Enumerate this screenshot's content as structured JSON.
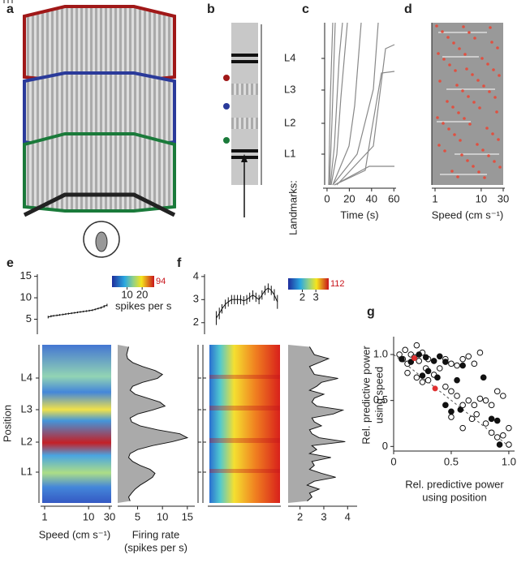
{
  "panel_labels": [
    "a",
    "b",
    "c",
    "d",
    "e",
    "f",
    "g"
  ],
  "b": {
    "landmarks": [
      "L4",
      "L3",
      "L2",
      "L1"
    ],
    "landmarks_title": "Landmarks:"
  },
  "c": {
    "xlabel": "Time (s)",
    "xlim": [
      -3.6,
      62
    ],
    "xticks": [
      0,
      20,
      40,
      60
    ]
  },
  "d": {
    "xlabel": "Speed (cm s⁻¹)",
    "xlim": [
      1,
      30
    ],
    "xticks": [
      1,
      10,
      30
    ],
    "log_x": true
  },
  "e": {
    "top": {
      "type": "line",
      "xlim": [
        1,
        30
      ],
      "log_x": true,
      "ylim": [
        1.5,
        15.5
      ],
      "yticks": [
        5,
        10,
        15
      ],
      "x": [
        1.2,
        1.4,
        1.6,
        1.9,
        2.2,
        2.6,
        3,
        3.5,
        4.1,
        4.8,
        5.6,
        6.5,
        7.6,
        8.9,
        10.4,
        12.1,
        14.1,
        16.5,
        19.3,
        22.5,
        26.3
      ],
      "values": [
        5.5,
        5.7,
        5.8,
        5.9,
        6.0,
        6.1,
        6.2,
        6.3,
        6.4,
        6.5,
        6.6,
        6.7,
        6.8,
        6.9,
        7.0,
        7.1,
        7.3,
        7.5,
        7.7,
        8.0,
        8.3
      ],
      "errors": [
        0.3,
        0.25,
        0.2,
        0.2,
        0.2,
        0.2,
        0.2,
        0.2,
        0.2,
        0.2,
        0.2,
        0.2,
        0.2,
        0.2,
        0.2,
        0.2,
        0.2,
        0.2,
        0.25,
        0.3,
        0.3
      ],
      "color": "#111"
    },
    "colorbar": {
      "clim": [
        0,
        28
      ],
      "ticks": [
        10,
        20
      ],
      "max": 94,
      "label": "spikes per s"
    },
    "heatmap": {
      "xlabel": "Speed (cm s⁻¹)",
      "ylabel": "Position",
      "xlim": [
        1,
        30
      ],
      "xticks": [
        1,
        10,
        30
      ],
      "log_x": true
    },
    "profile": {
      "type": "profile",
      "xlabel": [
        "Firing rate",
        "(spikes per s)"
      ],
      "xlim": [
        1,
        16.5
      ],
      "xticks": [
        5,
        10,
        15
      ],
      "values": [
        3.5,
        3.2,
        3.8,
        4.5,
        5.5,
        6.8,
        8,
        8.5,
        7.5,
        5.5,
        4,
        3.2,
        3.5,
        5,
        8,
        12,
        15,
        13.5,
        9,
        5.5,
        3.8,
        3.5,
        5,
        8,
        10.5,
        9.5,
        7,
        4.5,
        3.5,
        4,
        6,
        9,
        10,
        8.5,
        6,
        4,
        3,
        2.8,
        3,
        3.2
      ]
    }
  },
  "f": {
    "top": {
      "type": "line",
      "xlim": [
        1,
        30
      ],
      "log_x": true,
      "ylim": [
        1.5,
        4.1
      ],
      "yticks": [
        2,
        3,
        4
      ],
      "x": [
        1.2,
        1.4,
        1.6,
        1.9,
        2.2,
        2.6,
        3,
        3.5,
        4.1,
        4.8,
        5.6,
        6.5,
        7.6,
        8.9,
        10.4,
        12.1,
        14.1,
        16.5,
        19.3,
        22.5,
        26.3
      ],
      "values": [
        2.2,
        2.4,
        2.6,
        2.8,
        2.9,
        3.0,
        3.0,
        3.0,
        3.0,
        2.95,
        3.0,
        3.1,
        3.2,
        3.1,
        3.0,
        3.2,
        3.4,
        3.5,
        3.4,
        3.2,
        2.9
      ],
      "errors": [
        0.3,
        0.25,
        0.2,
        0.2,
        0.2,
        0.2,
        0.2,
        0.2,
        0.2,
        0.2,
        0.2,
        0.2,
        0.2,
        0.2,
        0.2,
        0.2,
        0.2,
        0.2,
        0.2,
        0.25,
        0.3
      ],
      "color": "#111"
    },
    "colorbar": {
      "clim": [
        0.95,
        3.95
      ],
      "ticks": [
        2,
        3
      ],
      "max": 112
    },
    "profile": {
      "type": "profile",
      "xlim": [
        1.5,
        4.4
      ],
      "xticks": [
        2,
        3,
        4
      ],
      "values": [
        2.3,
        2.5,
        2.4,
        2.8,
        2.3,
        2.6,
        3.5,
        2.9,
        2.4,
        2.6,
        2.5,
        3.3,
        2.4,
        2.7,
        2.5,
        3.9,
        2.8,
        2.5,
        2.4,
        2.9,
        2.6,
        2.5,
        3.4,
        3.8,
        2.7,
        2.5,
        2.6,
        3.0,
        2.4,
        2.7,
        2.9,
        3.6,
        2.6,
        2.5,
        2.4,
        2.8,
        3.2,
        2.6,
        2.5,
        2.4
      ]
    }
  },
  "g": {
    "type": "scatter",
    "xlabel": [
      "Rel. predictive power",
      "using position"
    ],
    "ylabel": [
      "Rel. predictive power",
      "using speed"
    ],
    "xlim": [
      0,
      1.05
    ],
    "ylim": [
      -0.05,
      1.15
    ],
    "xticks": [
      0,
      0.5,
      {
        "value": 1,
        "label": "1.0"
      }
    ],
    "yticks": [
      0,
      0.5,
      {
        "value": 1,
        "label": "1.0"
      }
    ],
    "series": [
      {
        "name": "open",
        "color": "#fff",
        "x": [
          0.05,
          0.08,
          0.1,
          0.12,
          0.15,
          0.18,
          0.2,
          0.22,
          0.25,
          0.28,
          0.3,
          0.12,
          0.2,
          0.25,
          0.3,
          0.35,
          0.4,
          0.45,
          0.5,
          0.55,
          0.6,
          0.65,
          0.7,
          0.75,
          0.5,
          0.55,
          0.6,
          0.65,
          0.7,
          0.75,
          0.8,
          0.85,
          0.9,
          0.95,
          0.68,
          0.72,
          0.8,
          0.85,
          0.9,
          0.95,
          1.0,
          1.0,
          0.6,
          0.5,
          0.45
        ],
        "values": [
          1.0,
          0.95,
          1.05,
          0.9,
          1.0,
          0.97,
          1.1,
          0.93,
          1.02,
          0.85,
          0.95,
          0.8,
          0.75,
          0.7,
          0.72,
          0.78,
          0.85,
          0.95,
          0.9,
          0.88,
          0.95,
          0.98,
          0.9,
          1.02,
          0.6,
          0.55,
          0.45,
          0.5,
          0.45,
          0.52,
          0.5,
          0.45,
          0.6,
          0.55,
          0.3,
          0.35,
          0.25,
          0.15,
          0.1,
          0.12,
          0.2,
          0.02,
          0.2,
          0.32,
          0.65
        ]
      },
      {
        "name": "filled",
        "color": "#111",
        "x": [
          0.07,
          0.15,
          0.22,
          0.28,
          0.35,
          0.4,
          0.45,
          0.3,
          0.38,
          0.25,
          0.45,
          0.5,
          0.58,
          0.6,
          0.85,
          0.9,
          0.92,
          0.55,
          0.78
        ],
        "values": [
          0.95,
          0.92,
          1.0,
          0.97,
          0.93,
          0.98,
          0.92,
          0.82,
          0.75,
          0.77,
          0.45,
          0.38,
          0.4,
          0.88,
          0.3,
          0.28,
          0.02,
          0.72,
          0.75
        ]
      },
      {
        "name": "example",
        "color": "#e03030",
        "x": [
          0.18,
          0.36
        ],
        "values": [
          0.96,
          0.63
        ]
      }
    ]
  }
}
